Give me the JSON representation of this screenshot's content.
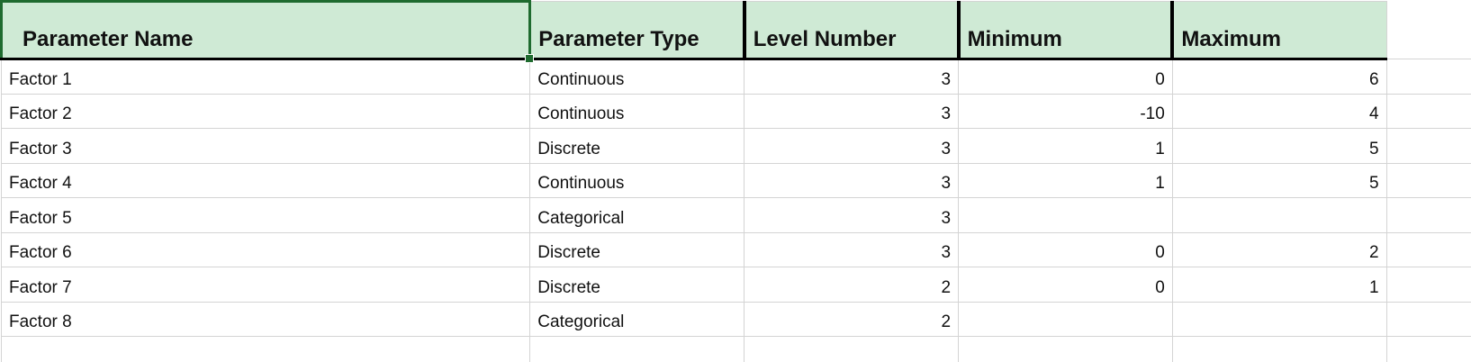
{
  "spreadsheet": {
    "columns": [
      "Parameter Name",
      "Parameter Type",
      "Level Number",
      "Minimum",
      "Maximum"
    ],
    "rows": [
      {
        "name": "Factor 1",
        "type": "Continuous",
        "level": "3",
        "min": "0",
        "max": "6"
      },
      {
        "name": "Factor 2",
        "type": "Continuous",
        "level": "3",
        "min": "-10",
        "max": "4"
      },
      {
        "name": "Factor 3",
        "type": "Discrete",
        "level": "3",
        "min": "1",
        "max": "5"
      },
      {
        "name": "Factor 4",
        "type": "Continuous",
        "level": "3",
        "min": "1",
        "max": "5"
      },
      {
        "name": "Factor 5",
        "type": "Categorical",
        "level": "3",
        "min": "",
        "max": ""
      },
      {
        "name": "Factor 6",
        "type": "Discrete",
        "level": "3",
        "min": "0",
        "max": "2"
      },
      {
        "name": "Factor 7",
        "type": "Discrete",
        "level": "2",
        "min": "0",
        "max": "1"
      },
      {
        "name": "Factor 8",
        "type": "Categorical",
        "level": "2",
        "min": "",
        "max": ""
      }
    ]
  },
  "colors": {
    "header_fill": "#cfead5",
    "selection_border": "#1f6b2f",
    "gridline": "#d4d4d4"
  }
}
